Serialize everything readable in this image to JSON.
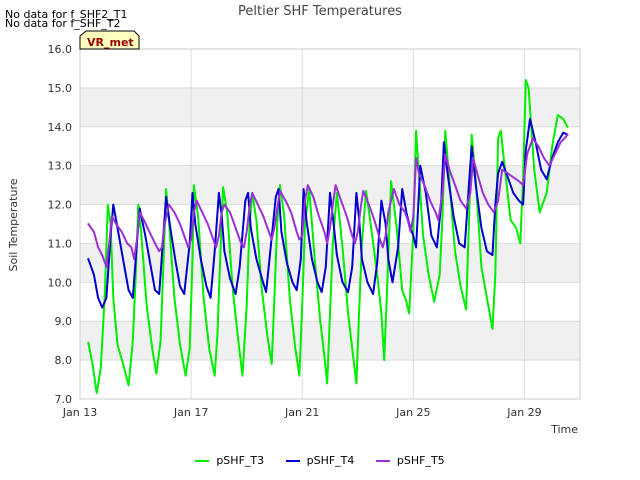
{
  "notes": [
    "No data for f_SHF2_T1",
    "No data for f_SHF_T2"
  ],
  "badge": "VR_met",
  "colors": {
    "pSHF_T3": "#00ee00",
    "pSHF_T4": "#0000cc",
    "pSHF_T5": "#9b30d8",
    "band": "#f0f0f0",
    "grid": "#dddddd",
    "badge_fill": "#ffffc0",
    "badge_text": "#990000"
  },
  "chart_data": {
    "type": "line",
    "title": "Peltier SHF Temperatures",
    "xlabel": "Time",
    "ylabel": "Soil Temperature",
    "xlim": [
      13.0,
      31.0
    ],
    "ylim": [
      7.0,
      16.0
    ],
    "x_ticks": [
      {
        "value": 13,
        "label": "Jan 13"
      },
      {
        "value": 17,
        "label": "Jan 17"
      },
      {
        "value": 21,
        "label": "Jan 21"
      },
      {
        "value": 25,
        "label": "Jan 25"
      },
      {
        "value": 29,
        "label": "Jan 29"
      }
    ],
    "y_ticks": [
      7.0,
      8.0,
      9.0,
      10.0,
      11.0,
      12.0,
      13.0,
      14.0,
      15.0,
      16.0
    ],
    "y_tick_labels": [
      "7.0",
      "8.0",
      "9.0",
      "10.0",
      "11.0",
      "12.0",
      "13.0",
      "14.0",
      "15.0",
      "16.0"
    ],
    "grid": true,
    "legend_position": "bottom",
    "series": [
      {
        "name": "pSHF_T3",
        "x": [
          13.3,
          13.45,
          13.6,
          13.75,
          13.9,
          14.0,
          14.1,
          14.2,
          14.35,
          14.55,
          14.75,
          14.9,
          15.0,
          15.1,
          15.2,
          15.4,
          15.6,
          15.75,
          15.9,
          16.0,
          16.1,
          16.2,
          16.4,
          16.6,
          16.8,
          16.95,
          17.05,
          17.1,
          17.25,
          17.45,
          17.65,
          17.85,
          17.95,
          18.05,
          18.15,
          18.3,
          18.5,
          18.7,
          18.85,
          19.0,
          19.1,
          19.2,
          19.35,
          19.55,
          19.75,
          19.9,
          20.0,
          20.1,
          20.2,
          20.35,
          20.55,
          20.75,
          20.9,
          21.0,
          21.1,
          21.25,
          21.45,
          21.65,
          21.8,
          21.9,
          22.0,
          22.1,
          22.25,
          22.45,
          22.65,
          22.8,
          22.95,
          23.05,
          23.15,
          23.3,
          23.5,
          23.7,
          23.85,
          23.95,
          24.05,
          24.2,
          24.4,
          24.6,
          24.75,
          24.85,
          25.0,
          25.1,
          25.2,
          25.35,
          25.55,
          25.75,
          25.95,
          26.05,
          26.15,
          26.3,
          26.5,
          26.7,
          26.9,
          27.0,
          27.1,
          27.25,
          27.45,
          27.65,
          27.85,
          27.95,
          28.05,
          28.15,
          28.3,
          28.5,
          28.7,
          28.85,
          28.95,
          29.05,
          29.15,
          29.35,
          29.55,
          29.8,
          30.0,
          30.2,
          30.4,
          30.55
        ],
        "values": [
          8.45,
          7.9,
          7.15,
          7.8,
          9.8,
          12.0,
          11.5,
          9.6,
          8.4,
          7.9,
          7.35,
          8.5,
          10.1,
          12.0,
          11.3,
          9.4,
          8.3,
          7.65,
          8.5,
          10.4,
          12.4,
          11.6,
          9.6,
          8.4,
          7.6,
          8.3,
          10.6,
          12.5,
          11.7,
          9.6,
          8.3,
          7.6,
          8.7,
          10.7,
          12.45,
          11.8,
          9.8,
          8.5,
          7.6,
          9.4,
          11.4,
          12.3,
          11.6,
          9.8,
          8.6,
          7.9,
          9.6,
          11.5,
          12.5,
          11.7,
          9.6,
          8.3,
          7.6,
          9.4,
          11.5,
          12.4,
          10.6,
          9.0,
          8.1,
          7.4,
          9.2,
          11.0,
          12.3,
          10.9,
          9.2,
          8.3,
          7.4,
          9.3,
          11.0,
          12.35,
          11.3,
          10.2,
          9.2,
          8.0,
          9.7,
          12.6,
          11.4,
          9.8,
          9.5,
          9.2,
          11.3,
          13.9,
          12.8,
          11.2,
          10.2,
          9.5,
          10.2,
          11.7,
          13.9,
          12.6,
          10.8,
          9.9,
          9.3,
          11.5,
          13.8,
          12.6,
          10.4,
          9.6,
          8.8,
          10.2,
          13.7,
          13.9,
          12.9,
          11.6,
          11.4,
          11.0,
          12.7,
          15.2,
          15.0,
          12.9,
          11.8,
          12.3,
          13.5,
          14.3,
          14.2,
          14.0
        ]
      },
      {
        "name": "pSHF_T4",
        "x": [
          13.3,
          13.5,
          13.65,
          13.8,
          13.95,
          14.1,
          14.2,
          14.4,
          14.6,
          14.75,
          14.9,
          15.05,
          15.15,
          15.35,
          15.55,
          15.7,
          15.85,
          16.0,
          16.1,
          16.25,
          16.45,
          16.6,
          16.75,
          16.95,
          17.05,
          17.15,
          17.35,
          17.55,
          17.7,
          17.85,
          18.0,
          18.1,
          18.2,
          18.4,
          18.6,
          18.75,
          18.95,
          19.05,
          19.15,
          19.35,
          19.55,
          19.7,
          19.85,
          20.05,
          20.15,
          20.25,
          20.45,
          20.65,
          20.8,
          20.95,
          21.05,
          21.15,
          21.35,
          21.55,
          21.7,
          21.85,
          22.0,
          22.1,
          22.25,
          22.45,
          22.65,
          22.8,
          22.95,
          23.05,
          23.15,
          23.35,
          23.55,
          23.7,
          23.85,
          24.0,
          24.1,
          24.25,
          24.45,
          24.6,
          24.75,
          24.85,
          25.0,
          25.1,
          25.25,
          25.45,
          25.65,
          25.85,
          26.0,
          26.1,
          26.25,
          26.45,
          26.65,
          26.85,
          27.0,
          27.1,
          27.25,
          27.45,
          27.65,
          27.85,
          27.95,
          28.05,
          28.2,
          28.4,
          28.6,
          28.8,
          28.95,
          29.05,
          29.2,
          29.4,
          29.6,
          29.8,
          30.0,
          30.2,
          30.4,
          30.55
        ],
        "values": [
          10.6,
          10.2,
          9.6,
          9.35,
          9.6,
          11.2,
          12.0,
          11.2,
          10.4,
          9.8,
          9.6,
          11.0,
          11.9,
          11.2,
          10.4,
          9.8,
          9.7,
          11.2,
          12.2,
          11.4,
          10.5,
          9.9,
          9.7,
          11.0,
          12.3,
          11.5,
          10.6,
          9.9,
          9.6,
          10.8,
          12.3,
          11.7,
          10.8,
          10.1,
          9.7,
          10.4,
          12.1,
          12.3,
          11.4,
          10.6,
          10.1,
          9.75,
          10.8,
          12.2,
          12.4,
          11.3,
          10.5,
          10.0,
          9.8,
          10.6,
          12.4,
          11.6,
          10.6,
          10.0,
          9.75,
          10.4,
          12.3,
          11.7,
          10.7,
          10.0,
          9.75,
          10.4,
          12.3,
          11.6,
          10.6,
          10.0,
          9.7,
          10.5,
          12.1,
          11.5,
          10.6,
          10.0,
          10.9,
          12.4,
          11.8,
          11.5,
          11.2,
          10.9,
          13.0,
          12.3,
          11.2,
          10.9,
          12.0,
          13.6,
          12.7,
          11.7,
          11.0,
          10.9,
          12.5,
          13.5,
          12.5,
          11.4,
          10.8,
          10.7,
          12.0,
          12.8,
          13.1,
          12.7,
          12.3,
          12.1,
          12.0,
          13.4,
          14.2,
          13.6,
          12.9,
          12.65,
          13.2,
          13.6,
          13.85,
          13.8
        ]
      },
      {
        "name": "pSHF_T5",
        "x": [
          13.3,
          13.5,
          13.65,
          13.8,
          13.95,
          14.05,
          14.15,
          14.3,
          14.5,
          14.7,
          14.85,
          14.95,
          15.05,
          15.15,
          15.3,
          15.5,
          15.7,
          15.85,
          15.95,
          16.05,
          16.2,
          16.4,
          16.6,
          16.8,
          16.9,
          17.0,
          17.1,
          17.2,
          17.4,
          17.6,
          17.8,
          17.9,
          18.0,
          18.1,
          18.2,
          18.4,
          18.6,
          18.8,
          18.9,
          19.0,
          19.1,
          19.2,
          19.4,
          19.6,
          19.8,
          19.9,
          20.0,
          20.1,
          20.2,
          20.4,
          20.6,
          20.8,
          20.9,
          21.0,
          21.1,
          21.2,
          21.4,
          21.6,
          21.8,
          21.9,
          22.0,
          22.1,
          22.2,
          22.4,
          22.6,
          22.8,
          22.9,
          23.0,
          23.1,
          23.2,
          23.4,
          23.6,
          23.8,
          23.9,
          24.0,
          24.1,
          24.3,
          24.5,
          24.7,
          24.8,
          24.9,
          25.0,
          25.1,
          25.2,
          25.4,
          25.6,
          25.8,
          25.9,
          26.05,
          26.15,
          26.3,
          26.5,
          26.7,
          26.9,
          27.05,
          27.15,
          27.3,
          27.5,
          27.7,
          27.9,
          28.05,
          28.2,
          28.4,
          28.6,
          28.8,
          28.95,
          29.1,
          29.3,
          29.5,
          29.7,
          29.9,
          30.1,
          30.3,
          30.5,
          30.55
        ],
        "values": [
          11.5,
          11.3,
          10.9,
          10.7,
          10.4,
          11.0,
          11.7,
          11.5,
          11.3,
          11.0,
          10.9,
          10.6,
          11.1,
          11.8,
          11.6,
          11.3,
          11.0,
          10.8,
          10.9,
          11.5,
          12.0,
          11.8,
          11.5,
          11.1,
          10.9,
          11.1,
          11.8,
          12.1,
          11.8,
          11.5,
          11.1,
          10.9,
          11.2,
          11.8,
          12.0,
          11.8,
          11.4,
          11.0,
          10.9,
          11.3,
          11.9,
          12.3,
          12.0,
          11.7,
          11.3,
          11.1,
          11.4,
          11.9,
          12.35,
          12.1,
          11.8,
          11.3,
          11.1,
          11.2,
          12.1,
          12.5,
          12.2,
          11.7,
          11.3,
          11.0,
          11.4,
          12.0,
          12.5,
          12.1,
          11.7,
          11.2,
          11.0,
          11.3,
          11.9,
          12.35,
          12.0,
          11.6,
          11.1,
          10.9,
          11.2,
          11.8,
          12.4,
          12.0,
          11.8,
          11.6,
          11.3,
          11.7,
          13.2,
          12.8,
          12.5,
          12.1,
          11.8,
          11.6,
          12.3,
          13.3,
          12.9,
          12.5,
          12.1,
          11.9,
          12.3,
          13.2,
          12.8,
          12.3,
          12.0,
          11.8,
          12.1,
          12.9,
          12.8,
          12.7,
          12.6,
          12.5,
          13.3,
          13.7,
          13.5,
          13.2,
          13.0,
          13.3,
          13.6,
          13.75,
          13.8
        ]
      }
    ]
  }
}
